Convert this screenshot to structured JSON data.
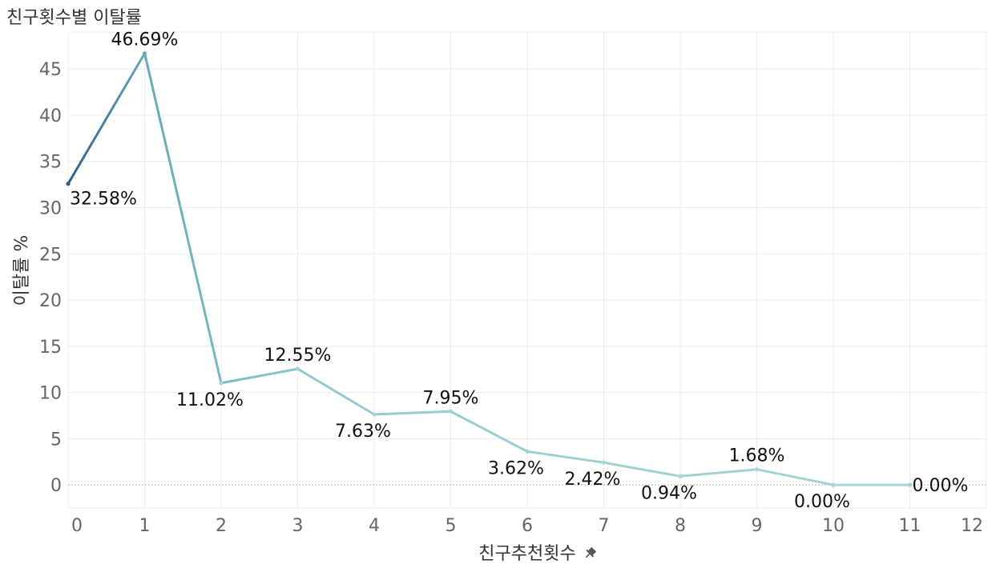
{
  "chart_data": {
    "type": "line",
    "title": "친구횟수별 이탈률",
    "xlabel": "친구추천횟수",
    "ylabel": "이탈률 %",
    "x": [
      0,
      1,
      2,
      3,
      4,
      5,
      6,
      7,
      8,
      9,
      10,
      11
    ],
    "y": [
      32.58,
      46.69,
      11.02,
      12.55,
      7.63,
      7.95,
      3.62,
      2.42,
      0.94,
      1.68,
      0.0,
      0.0
    ],
    "data_labels": [
      "32.58%",
      "46.69%",
      "11.02%",
      "12.55%",
      "7.63%",
      "7.95%",
      "3.62%",
      "2.42%",
      "0.94%",
      "1.68%",
      "0.00%",
      "0.00%"
    ],
    "xlim": [
      0,
      12
    ],
    "ylim": [
      -2.5,
      49
    ],
    "x_ticks": [
      0,
      1,
      2,
      3,
      4,
      5,
      6,
      7,
      8,
      9,
      10,
      11,
      12
    ],
    "y_ticks": [
      0,
      5,
      10,
      15,
      20,
      25,
      30,
      35,
      40,
      45
    ],
    "grid": true,
    "zero_line": "dotted",
    "colors": {
      "line_start": "#2e5f84",
      "line_mid": "#66a9b8",
      "line_end": "#a6d6d3",
      "grid": "#ececec",
      "zero_line": "#b0b0b0"
    },
    "xlabel_icon": "pin-icon"
  }
}
